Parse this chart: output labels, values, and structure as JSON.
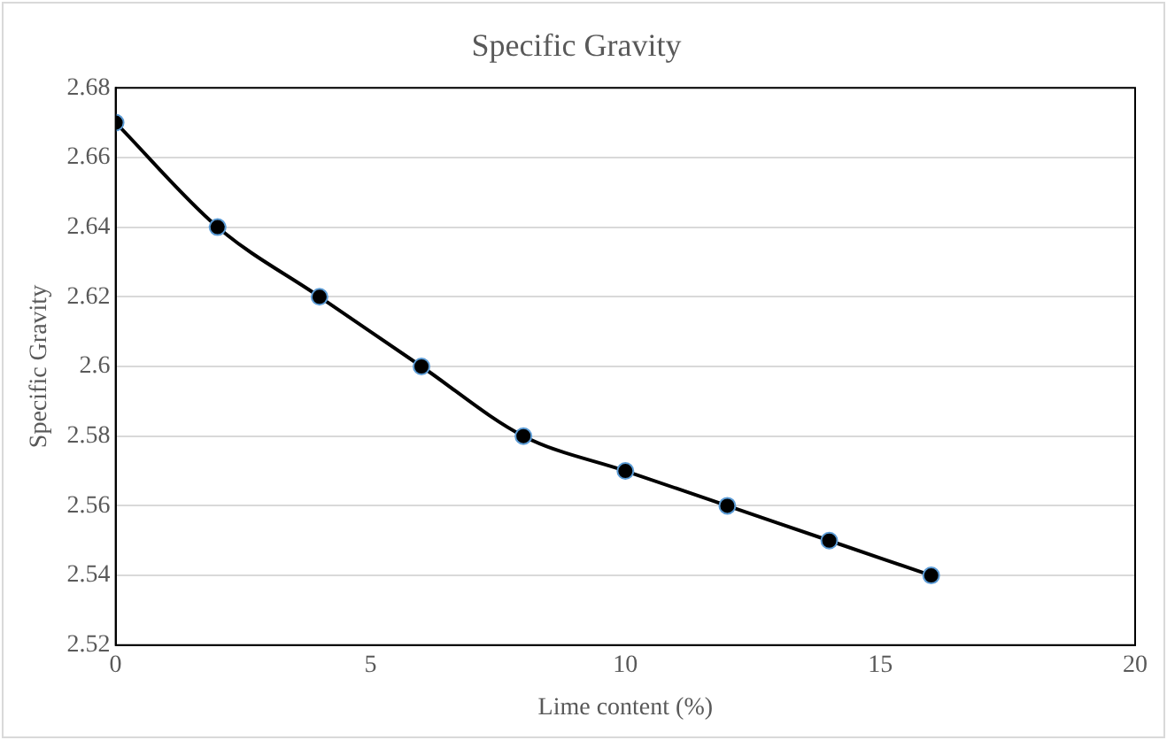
{
  "chart_data": {
    "type": "line",
    "title": "Specific Gravity",
    "xlabel": "Lime content (%)",
    "ylabel": "Specific Gravity",
    "x": [
      0,
      2,
      4,
      6,
      8,
      10,
      12,
      14,
      16
    ],
    "series": [
      {
        "color": "#000000",
        "values": [
          2.67,
          2.64,
          2.62,
          2.6,
          2.58,
          2.57,
          2.56,
          2.55,
          2.54
        ]
      }
    ],
    "xlim": [
      0,
      20
    ],
    "xticks": [
      0,
      5,
      10,
      15,
      20
    ],
    "ylim": [
      2.52,
      2.68
    ],
    "yticks": [
      2.52,
      2.54,
      2.56,
      2.58,
      2.6,
      2.62,
      2.64,
      2.66,
      2.68
    ],
    "grid": "y",
    "legend": false,
    "marker": "circle",
    "line_style": "solid"
  }
}
